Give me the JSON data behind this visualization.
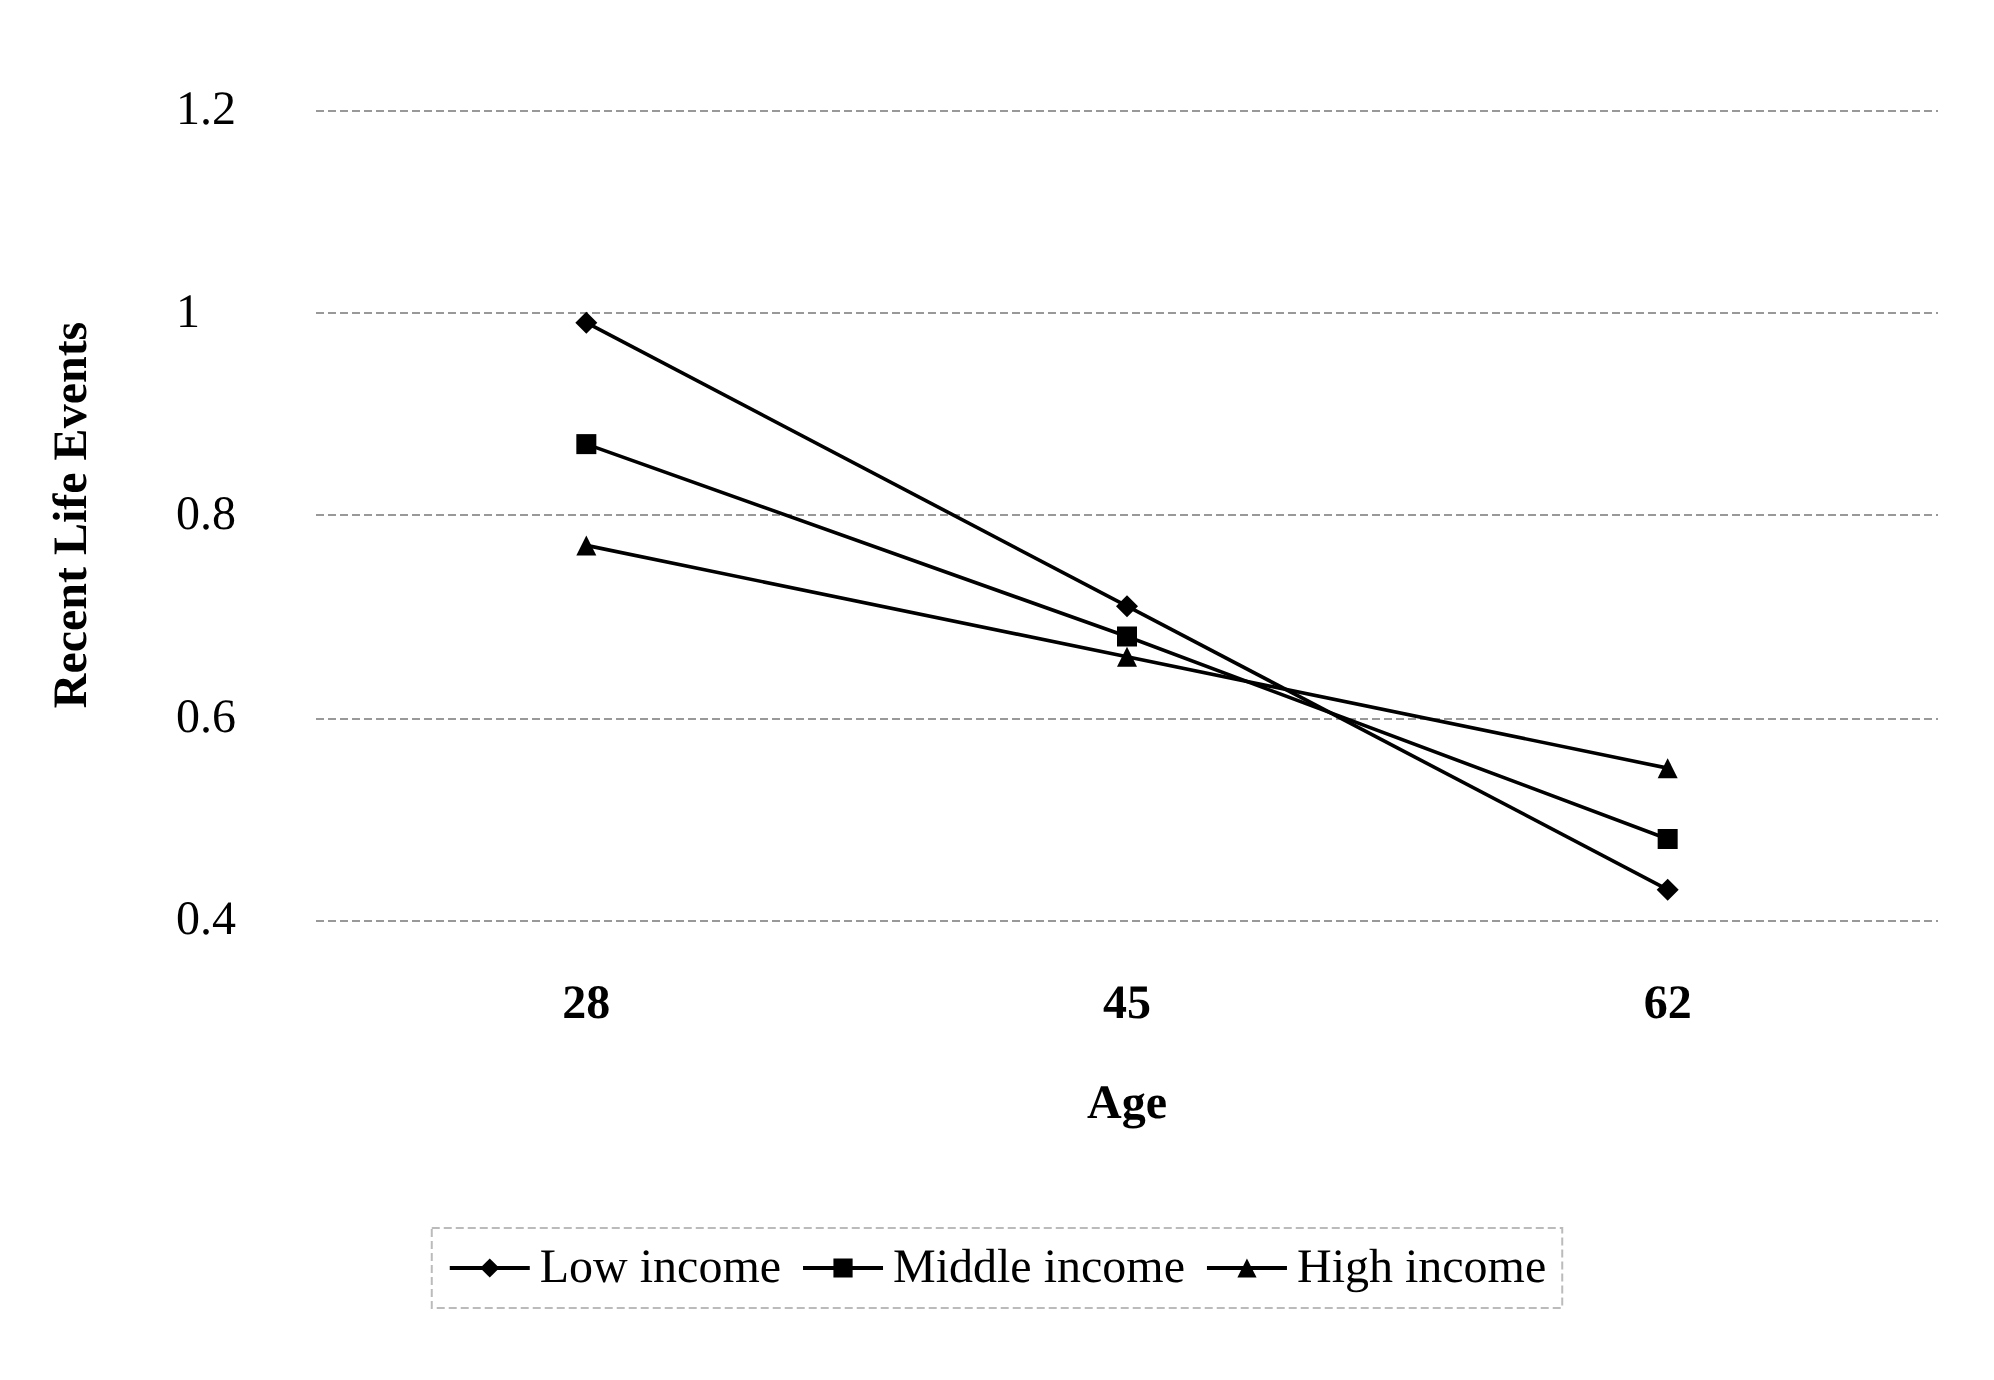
{
  "chart_data": {
    "type": "line",
    "xlabel": "Age",
    "ylabel": "Recent Life Events",
    "categories": [
      "28",
      "45",
      "62"
    ],
    "series": [
      {
        "name": "Low income",
        "color": "#000000",
        "marker": "diamond",
        "values": [
          0.99,
          0.71,
          0.43
        ]
      },
      {
        "name": "Middle income",
        "color": "#000000",
        "marker": "square",
        "values": [
          0.87,
          0.68,
          0.48
        ]
      },
      {
        "name": "High income",
        "color": "#000000",
        "marker": "triangle",
        "values": [
          0.77,
          0.66,
          0.55
        ]
      }
    ],
    "ylim": [
      0.4,
      1.2
    ],
    "yticks": [
      0.4,
      0.6,
      0.8,
      1,
      1.2
    ],
    "grid": "y",
    "legend": "bottom",
    "line_style": "solid"
  }
}
